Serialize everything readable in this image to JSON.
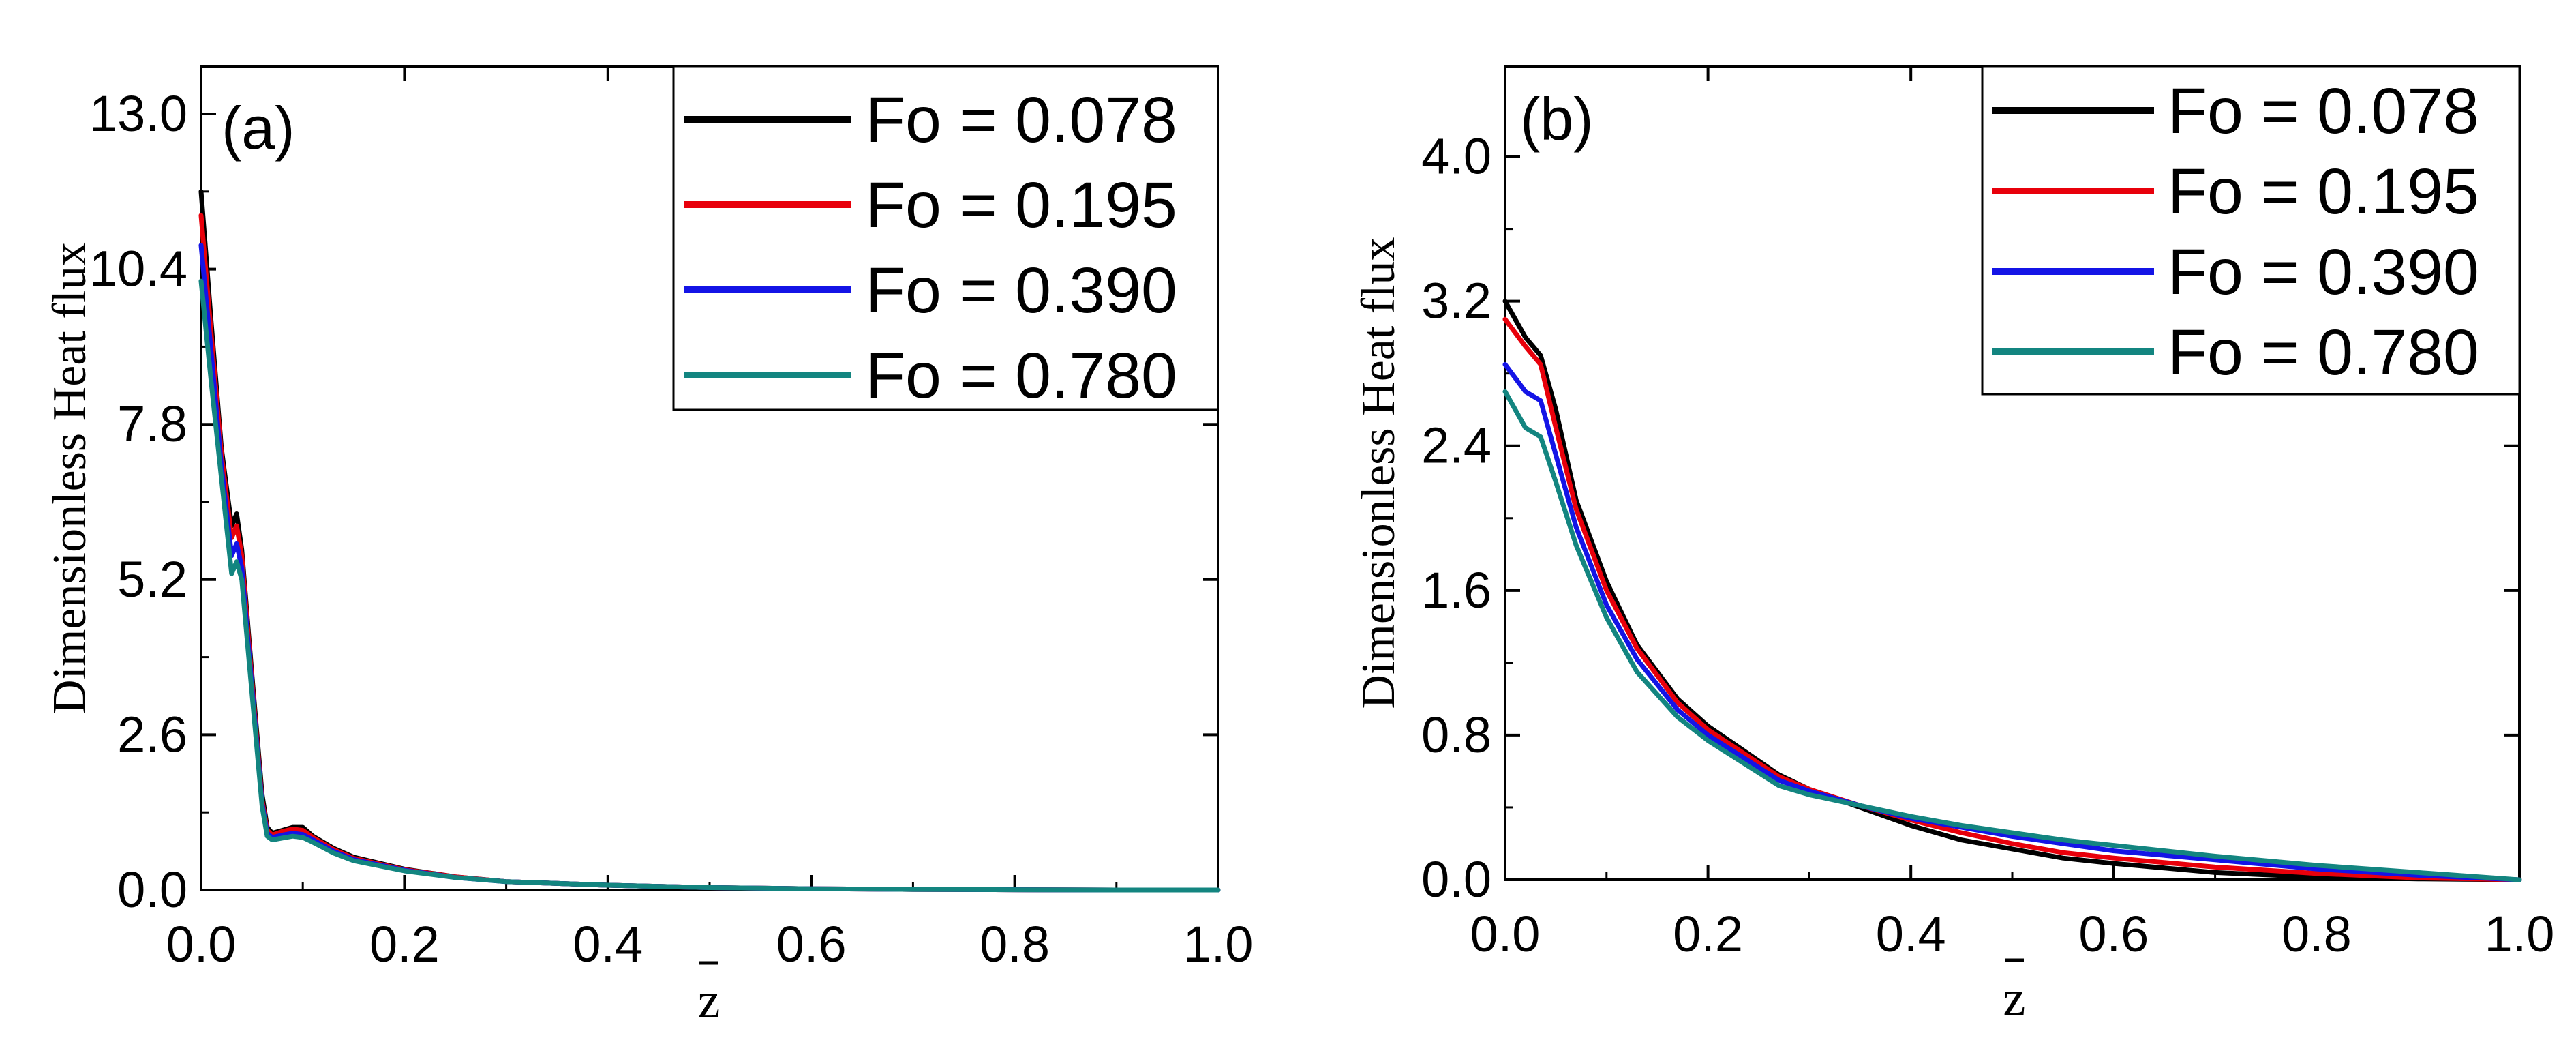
{
  "chart_data": [
    {
      "type": "line",
      "panel_label": "(a)",
      "xlabel": "z",
      "ylabel": "Dimensionless Heat flux",
      "xlim": [
        0.0,
        1.0
      ],
      "ylim": [
        0.0,
        13.8
      ],
      "x_ticks": [
        "0.0",
        "0.2",
        "0.4",
        "0.6",
        "0.8",
        "1.0"
      ],
      "y_ticks": [
        "0.0",
        "2.6",
        "5.2",
        "7.8",
        "10.4",
        "13.0"
      ],
      "legend_position": "top-right",
      "series": [
        {
          "name": "Fo = 0.078",
          "color": "#000000",
          "x": [
            0,
            0.01,
            0.02,
            0.03,
            0.035,
            0.04,
            0.05,
            0.06,
            0.065,
            0.07,
            0.08,
            0.09,
            0.1,
            0.11,
            0.13,
            0.15,
            0.2,
            0.25,
            0.3,
            0.4,
            0.5,
            0.6,
            0.7,
            0.8,
            0.9,
            1.0
          ],
          "y": [
            11.7,
            9.5,
            7.4,
            6.1,
            6.3,
            5.7,
            3.6,
            1.6,
            1.05,
            0.95,
            1.0,
            1.05,
            1.05,
            0.9,
            0.7,
            0.55,
            0.35,
            0.22,
            0.14,
            0.08,
            0.04,
            0.02,
            0.01,
            0.005,
            0.0,
            0.0
          ]
        },
        {
          "name": "Fo = 0.195",
          "color": "#e8000b",
          "x": [
            0,
            0.01,
            0.02,
            0.03,
            0.035,
            0.04,
            0.05,
            0.06,
            0.065,
            0.07,
            0.08,
            0.09,
            0.1,
            0.11,
            0.13,
            0.15,
            0.2,
            0.25,
            0.3,
            0.4,
            0.5,
            0.6,
            0.7,
            0.8,
            0.9,
            1.0
          ],
          "y": [
            11.3,
            9.3,
            7.3,
            5.9,
            6.1,
            5.6,
            3.5,
            1.5,
            1.0,
            0.92,
            0.98,
            1.02,
            1.0,
            0.88,
            0.68,
            0.53,
            0.34,
            0.22,
            0.14,
            0.08,
            0.04,
            0.02,
            0.01,
            0.005,
            0.0,
            0.0
          ]
        },
        {
          "name": "Fo = 0.390",
          "color": "#1414e6",
          "x": [
            0,
            0.01,
            0.02,
            0.03,
            0.035,
            0.04,
            0.05,
            0.06,
            0.065,
            0.07,
            0.08,
            0.09,
            0.1,
            0.11,
            0.13,
            0.15,
            0.2,
            0.25,
            0.3,
            0.4,
            0.5,
            0.6,
            0.7,
            0.8,
            0.9,
            1.0
          ],
          "y": [
            10.8,
            9.0,
            7.1,
            5.6,
            5.8,
            5.4,
            3.4,
            1.45,
            0.95,
            0.88,
            0.92,
            0.95,
            0.93,
            0.84,
            0.65,
            0.51,
            0.33,
            0.21,
            0.14,
            0.08,
            0.04,
            0.02,
            0.01,
            0.005,
            0.0,
            0.0
          ]
        },
        {
          "name": "Fo = 0.780",
          "color": "#138580",
          "x": [
            0,
            0.01,
            0.02,
            0.03,
            0.035,
            0.04,
            0.05,
            0.06,
            0.065,
            0.07,
            0.08,
            0.09,
            0.1,
            0.11,
            0.13,
            0.15,
            0.2,
            0.25,
            0.3,
            0.4,
            0.5,
            0.6,
            0.7,
            0.8,
            0.9,
            1.0
          ],
          "y": [
            10.2,
            8.5,
            6.9,
            5.3,
            5.5,
            5.2,
            3.3,
            1.4,
            0.9,
            0.84,
            0.87,
            0.9,
            0.88,
            0.8,
            0.62,
            0.49,
            0.32,
            0.21,
            0.14,
            0.08,
            0.04,
            0.02,
            0.01,
            0.005,
            0.0,
            0.0
          ]
        }
      ]
    },
    {
      "type": "line",
      "panel_label": "(b)",
      "xlabel": "z",
      "ylabel": "Dimensionless Heat flux",
      "xlim": [
        0.0,
        1.0
      ],
      "ylim": [
        0.0,
        4.5
      ],
      "x_ticks": [
        "0.0",
        "0.2",
        "0.4",
        "0.6",
        "0.8",
        "1.0"
      ],
      "y_ticks": [
        "0.0",
        "0.8",
        "1.6",
        "2.4",
        "3.2",
        "4.0"
      ],
      "legend_position": "top-right",
      "series": [
        {
          "name": "Fo = 0.078",
          "color": "#000000",
          "x": [
            0,
            0.02,
            0.035,
            0.05,
            0.07,
            0.1,
            0.13,
            0.17,
            0.2,
            0.27,
            0.3,
            0.35,
            0.4,
            0.45,
            0.5,
            0.55,
            0.6,
            0.7,
            0.8,
            0.9,
            1.0
          ],
          "y": [
            3.2,
            3.0,
            2.9,
            2.6,
            2.1,
            1.65,
            1.3,
            1.0,
            0.85,
            0.58,
            0.5,
            0.4,
            0.3,
            0.22,
            0.17,
            0.12,
            0.09,
            0.04,
            0.015,
            0.005,
            0.0
          ]
        },
        {
          "name": "Fo = 0.195",
          "color": "#e8000b",
          "x": [
            0,
            0.02,
            0.035,
            0.05,
            0.07,
            0.1,
            0.13,
            0.17,
            0.2,
            0.27,
            0.3,
            0.35,
            0.4,
            0.45,
            0.5,
            0.55,
            0.6,
            0.7,
            0.8,
            0.9,
            1.0
          ],
          "y": [
            3.1,
            2.95,
            2.85,
            2.5,
            2.05,
            1.6,
            1.28,
            0.98,
            0.83,
            0.57,
            0.5,
            0.41,
            0.33,
            0.26,
            0.2,
            0.15,
            0.12,
            0.07,
            0.035,
            0.01,
            0.0
          ]
        },
        {
          "name": "Fo = 0.390",
          "color": "#1414e6",
          "x": [
            0,
            0.02,
            0.035,
            0.05,
            0.07,
            0.1,
            0.13,
            0.17,
            0.2,
            0.27,
            0.3,
            0.35,
            0.4,
            0.45,
            0.5,
            0.55,
            0.6,
            0.7,
            0.8,
            0.9,
            1.0
          ],
          "y": [
            2.85,
            2.7,
            2.65,
            2.35,
            1.95,
            1.52,
            1.22,
            0.94,
            0.8,
            0.55,
            0.49,
            0.41,
            0.34,
            0.29,
            0.24,
            0.2,
            0.16,
            0.11,
            0.06,
            0.025,
            0.0
          ]
        },
        {
          "name": "Fo = 0.780",
          "color": "#138580",
          "x": [
            0,
            0.02,
            0.035,
            0.05,
            0.07,
            0.1,
            0.13,
            0.17,
            0.2,
            0.27,
            0.3,
            0.35,
            0.4,
            0.45,
            0.5,
            0.55,
            0.6,
            0.7,
            0.8,
            0.9,
            1.0
          ],
          "y": [
            2.7,
            2.5,
            2.45,
            2.2,
            1.85,
            1.45,
            1.15,
            0.9,
            0.77,
            0.52,
            0.47,
            0.41,
            0.35,
            0.3,
            0.26,
            0.22,
            0.19,
            0.13,
            0.08,
            0.04,
            0.0
          ]
        }
      ]
    }
  ]
}
